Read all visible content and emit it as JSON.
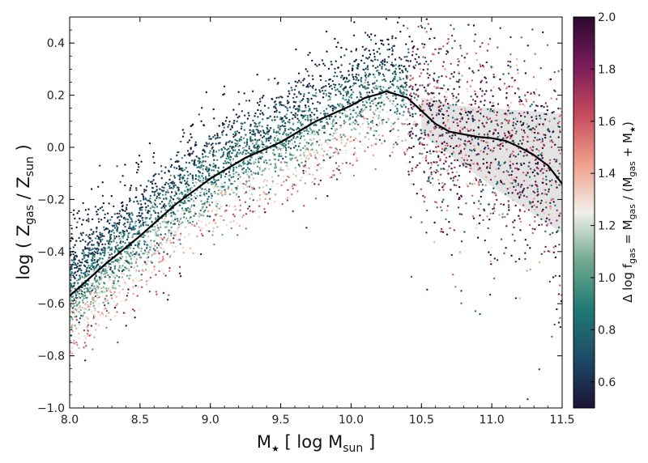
{
  "chart_data": {
    "type": "scatter",
    "title": "",
    "xlabel": {
      "prefix": "M",
      "star": "★",
      "rest": " [ log M",
      "sub": "sun",
      "suffix": " ]"
    },
    "ylabel": {
      "prefix": "log ( Z",
      "sub1": "gas",
      "mid": " / Z",
      "sub2": "sun",
      "suffix": " )"
    },
    "xlim": [
      8.0,
      11.5
    ],
    "ylim": [
      -1.0,
      0.5
    ],
    "xticks": [
      "8.0",
      "8.5",
      "9.0",
      "9.5",
      "10.0",
      "10.5",
      "11.0",
      "11.5"
    ],
    "yticks": [
      "−1.0",
      "−0.8",
      "−0.6",
      "−0.4",
      "−0.2",
      "0.0",
      "0.2",
      "0.4"
    ],
    "grid": false,
    "scatter_color_by": "delta_log_fgas",
    "median_line": {
      "color": "#000000",
      "x": [
        8.0,
        8.25,
        8.5,
        8.75,
        9.0,
        9.25,
        9.5,
        9.75,
        10.0,
        10.1,
        10.2,
        10.25,
        10.4,
        10.5,
        10.6,
        10.7,
        10.8,
        10.9,
        11.0,
        11.1,
        11.2,
        11.3,
        11.4,
        11.5
      ],
      "y": [
        -0.57,
        -0.45,
        -0.34,
        -0.22,
        -0.12,
        -0.04,
        0.02,
        0.1,
        0.16,
        0.19,
        0.205,
        0.215,
        0.19,
        0.14,
        0.09,
        0.06,
        0.05,
        0.04,
        0.035,
        0.025,
        0.0,
        -0.03,
        -0.07,
        -0.14
      ]
    },
    "scatter_band": {
      "color": "#d9d9d9",
      "x": [
        10.5,
        10.75,
        11.0,
        11.25,
        11.5
      ],
      "upper": [
        0.19,
        0.16,
        0.15,
        0.14,
        0.13
      ],
      "lower": [
        0.05,
        -0.05,
        -0.15,
        -0.24,
        -0.33
      ]
    },
    "colorbar": {
      "label": {
        "prefix": "Δ log f",
        "sub1": "gas",
        "mid1": " = M",
        "sub2": "gas",
        "mid2": " / (M",
        "sub3": "gas",
        "mid3": " + M",
        "star": "★",
        "suffix": ")"
      },
      "range": [
        0.5,
        2.0
      ],
      "ticks": [
        "0.6",
        "0.8",
        "1.0",
        "1.2",
        "1.4",
        "1.6",
        "1.8",
        "2.0"
      ],
      "tick_values": [
        0.6,
        0.8,
        1.0,
        1.2,
        1.4,
        1.6,
        1.8,
        2.0
      ],
      "colors": [
        "#1c1436",
        "#1d4a66",
        "#1f7a73",
        "#6fa88e",
        "#f0f0ea",
        "#ef9f8a",
        "#c64a5c",
        "#7a1c5a",
        "#2a0a2e"
      ]
    }
  }
}
